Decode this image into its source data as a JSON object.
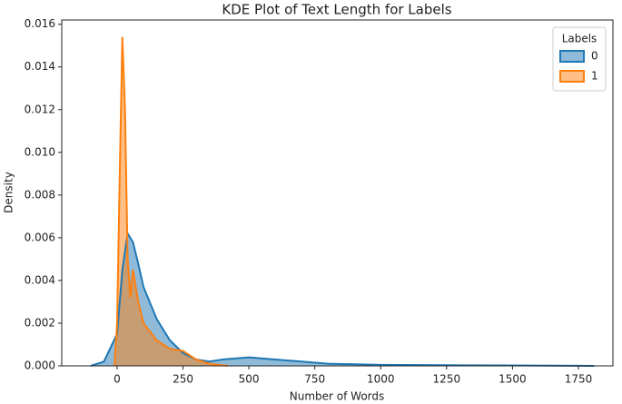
{
  "chart_data": {
    "type": "kde",
    "title": "KDE Plot of Text Length for Labels",
    "x_label": "Number of Words",
    "y_label": "Density",
    "legend_title": "Labels",
    "legend_position": "upper right",
    "series": [
      {
        "name": "0",
        "color": "#1f77b4",
        "x": [
          -100,
          -50,
          0,
          20,
          40,
          60,
          80,
          100,
          150,
          200,
          250,
          300,
          350,
          400,
          500,
          600,
          700,
          800,
          1000,
          1250,
          1500,
          1810
        ],
        "values": [
          0,
          0.0002,
          0.0015,
          0.0045,
          0.0062,
          0.0058,
          0.0048,
          0.0037,
          0.0022,
          0.0012,
          0.0006,
          0.0003,
          0.0002,
          0.0003,
          0.0004,
          0.0003,
          0.0002,
          0.0001,
          5e-05,
          3e-05,
          2e-05,
          0
        ]
      },
      {
        "name": "1",
        "color": "#ff7f0e",
        "x": [
          -10,
          0,
          10,
          20,
          30,
          40,
          50,
          60,
          80,
          100,
          150,
          200,
          250,
          300,
          350,
          420
        ],
        "values": [
          0,
          0.002,
          0.009,
          0.0154,
          0.012,
          0.005,
          0.0032,
          0.0045,
          0.003,
          0.002,
          0.0012,
          0.0008,
          0.0007,
          0.0003,
          0.0001,
          0
        ]
      }
    ],
    "xlim": [
      -210,
      1881
    ],
    "ylim": [
      0,
      0.0162
    ],
    "xticks": [
      0,
      250,
      500,
      750,
      1000,
      1250,
      1500,
      1750
    ],
    "yticks": [
      {
        "value": 0,
        "label": "0.000"
      },
      {
        "value": 0.002,
        "label": "0.002"
      },
      {
        "value": 0.004,
        "label": "0.004"
      },
      {
        "value": 0.006,
        "label": "0.006"
      },
      {
        "value": 0.008,
        "label": "0.008"
      },
      {
        "value": 0.01,
        "label": "0.010"
      },
      {
        "value": 0.012,
        "label": "0.012"
      },
      {
        "value": 0.014,
        "label": "0.014"
      },
      {
        "value": 0.016,
        "label": "0.016"
      }
    ]
  }
}
